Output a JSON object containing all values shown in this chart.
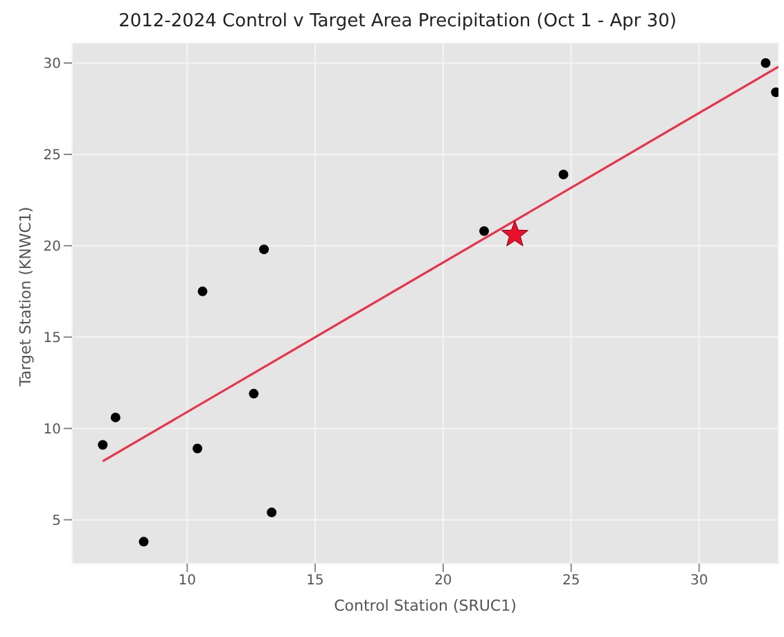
{
  "chart_data": {
    "type": "scatter",
    "title": "2012-2024 Control v Target Area Precipitation (Oct 1 - Apr 30)",
    "xlabel": "Control Station (SRUC1)",
    "ylabel": "Target Station (KNWC1)",
    "xlim": [
      5.5,
      33.1
    ],
    "xticks": [
      10,
      15,
      20,
      25,
      30
    ],
    "ylim": [
      2.6,
      31.1
    ],
    "yticks": [
      5,
      10,
      15,
      20,
      25,
      30
    ],
    "grid": true,
    "legend": false,
    "series": [
      {
        "type": "scatter",
        "marker": "circle",
        "color": "#000000",
        "x": [
          6.7,
          7.2,
          8.3,
          10.4,
          10.6,
          12.6,
          13.0,
          13.3,
          21.6,
          24.7,
          32.6,
          33.0
        ],
        "values": [
          9.1,
          10.6,
          3.8,
          8.9,
          17.5,
          11.9,
          19.8,
          5.4,
          20.8,
          23.9,
          30.0,
          28.4
        ]
      },
      {
        "type": "scatter",
        "marker": "star",
        "color": "#e8102a",
        "x": [
          22.8
        ],
        "values": [
          20.6
        ]
      },
      {
        "type": "line",
        "marker": "none",
        "color": "#e8334a",
        "x": [
          6.7,
          33.1
        ],
        "values": [
          8.2,
          29.8
        ]
      }
    ]
  }
}
